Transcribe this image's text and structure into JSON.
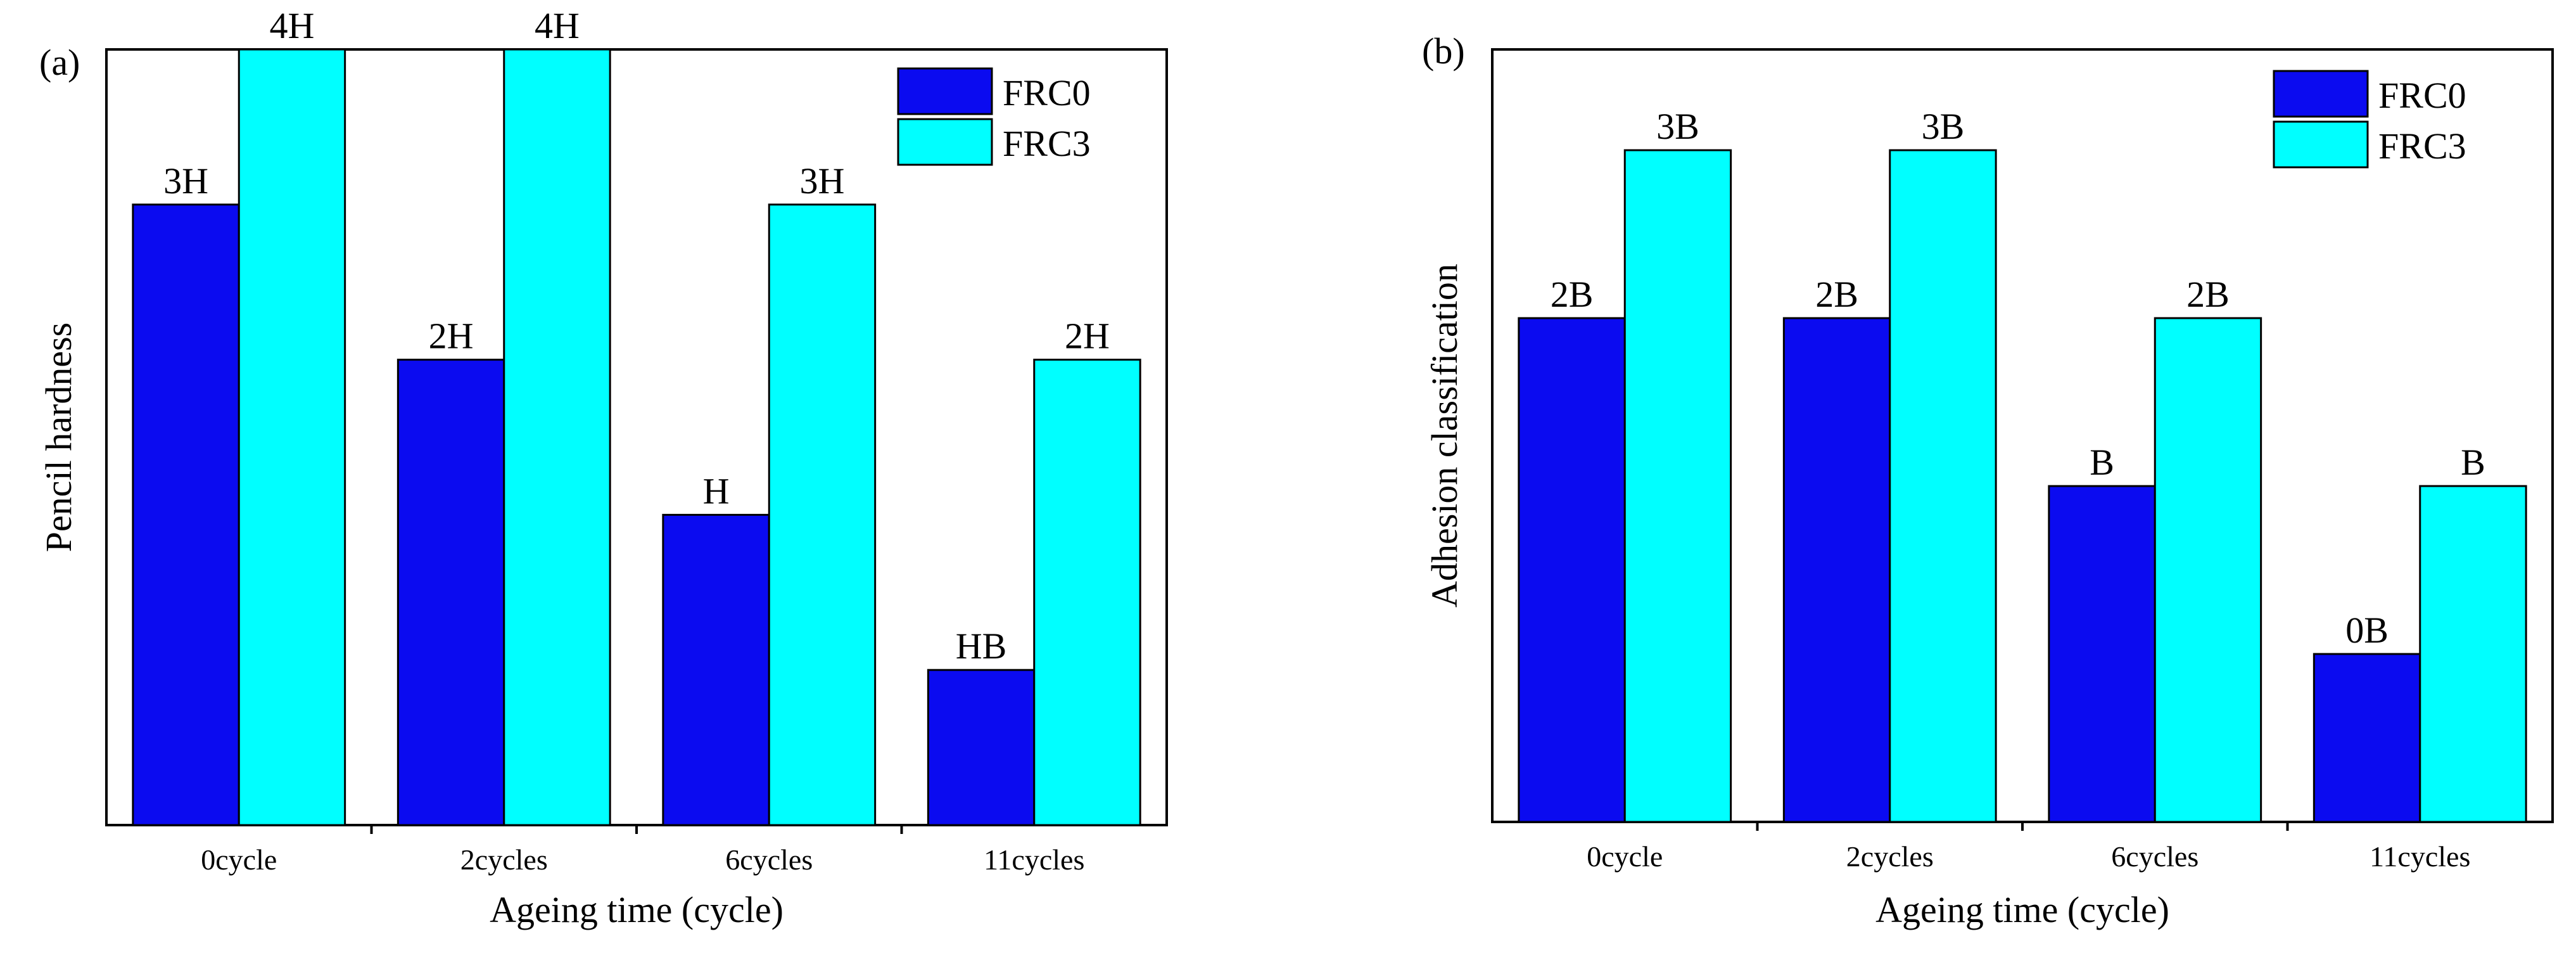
{
  "chart_data": [
    {
      "type": "bar",
      "panel": "(a)",
      "xlabel": "Ageing time (cycle)",
      "ylabel": "Pencil hardness",
      "categories": [
        "0cycle",
        "2cycles",
        "6cycles",
        "11cycles"
      ],
      "ylim": [
        0,
        5
      ],
      "grid": false,
      "legend_position": "top-right",
      "series": [
        {
          "name": "FRC0",
          "color": "#0b0bf0",
          "values": [
            4,
            3,
            2,
            1
          ],
          "labels": [
            "3H",
            "2H",
            "H",
            "HB"
          ]
        },
        {
          "name": "FRC3",
          "color": "#00ffff",
          "values": [
            5,
            5,
            4,
            3
          ],
          "labels": [
            "4H",
            "4H",
            "3H",
            "2H"
          ]
        }
      ]
    },
    {
      "type": "bar",
      "panel": "(b)",
      "xlabel": "Ageing time (cycle)",
      "ylabel": "Adhesion classification",
      "categories": [
        "0cycle",
        "2cycles",
        "6cycles",
        "11cycles"
      ],
      "ylim": [
        0,
        4.6
      ],
      "grid": false,
      "legend_position": "top-right",
      "series": [
        {
          "name": "FRC0",
          "color": "#0b0bf0",
          "values": [
            3,
            3,
            2,
            1
          ],
          "labels": [
            "2B",
            "2B",
            "B",
            "0B"
          ]
        },
        {
          "name": "FRC3",
          "color": "#00ffff",
          "values": [
            4,
            4,
            3,
            2
          ],
          "labels": [
            "3B",
            "3B",
            "2B",
            "B"
          ]
        }
      ]
    }
  ]
}
